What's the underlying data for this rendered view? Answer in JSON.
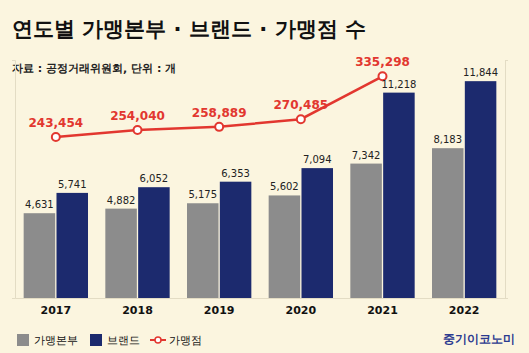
{
  "chart_data": {
    "type": "bar",
    "title": "연도별 가맹본부 · 브랜드 · 가맹점 수",
    "subtitle": "자료 : 공정거래위원회, 단위 : 개",
    "annotation": "중기이코노미",
    "categories": [
      "2017",
      "2018",
      "2019",
      "2020",
      "2021",
      "2022"
    ],
    "series": [
      {
        "name": "가맹본부",
        "type": "bar",
        "color": "#8c8c8c",
        "values": [
          4631,
          4882,
          5175,
          5602,
          7342,
          8183
        ],
        "value_labels": [
          "4,631",
          "4,882",
          "5,175",
          "5,602",
          "7,342",
          "8,183"
        ]
      },
      {
        "name": "브랜드",
        "type": "bar",
        "color": "#1c2a6e",
        "values": [
          5741,
          6052,
          6353,
          7094,
          11218,
          11844
        ],
        "value_labels": [
          "5,741",
          "6,052",
          "6,353",
          "7,094",
          "11,218",
          "11,844"
        ]
      },
      {
        "name": "가맹점",
        "type": "line",
        "axis": "y2",
        "color": "#e2372f",
        "marker": "circle",
        "line_style": "solid",
        "values": [
          243454,
          254040,
          258889,
          270485,
          335298,
          null
        ],
        "value_labels": [
          "243,454",
          "254,040",
          "258,889",
          "270,485",
          "335,298",
          null
        ]
      }
    ],
    "ylim": [
      0,
      13000
    ],
    "yticks": [
      0,
      13000
    ],
    "y2lim": [
      0,
      360000
    ],
    "y2ticks": [
      0,
      360000
    ],
    "grid": false,
    "legend": "bottom-left",
    "data_labels": true,
    "tick_labels": "x"
  }
}
